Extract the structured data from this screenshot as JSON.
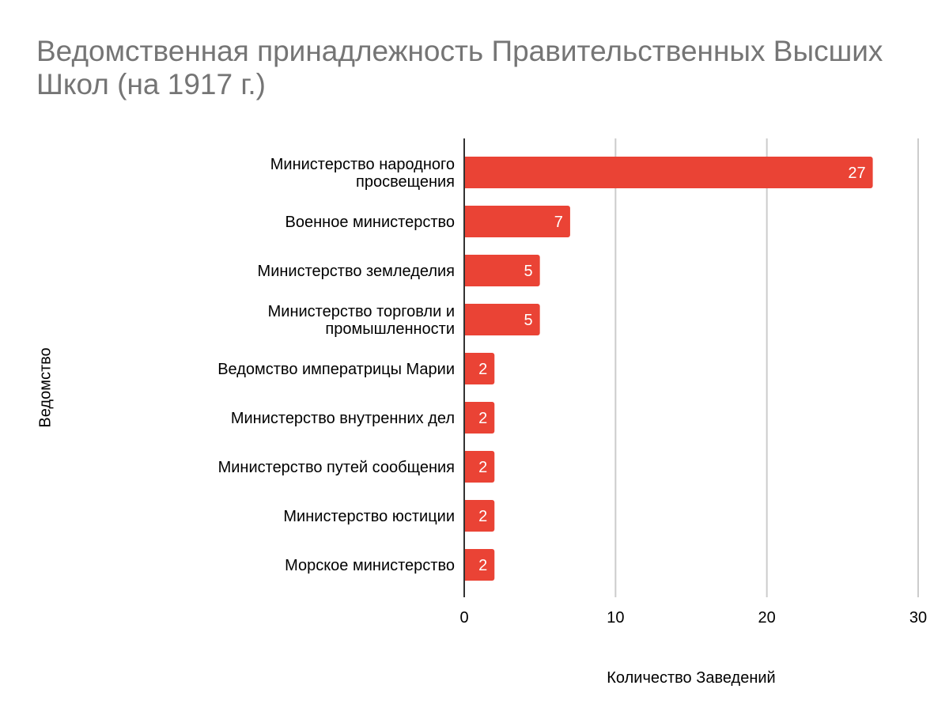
{
  "chart_data": {
    "type": "bar",
    "orientation": "horizontal",
    "title": "Ведомственная принадлежность Правительственных Высших Школ (на 1917 г.)",
    "xlabel": "Количество Заведений",
    "ylabel": "Ведомство",
    "categories": [
      "Министерство народного просвещения",
      "Военное министерство",
      "Министерство земледелия",
      "Министерство торговли и промышленности",
      "Ведомство императрицы Марии",
      "Министерство внутренних дел",
      "Министерство путей сообщения",
      "Министерство юстиции",
      "Морское министерство"
    ],
    "category_lines": [
      [
        "Министерство народного",
        "просвещения"
      ],
      [
        "Военное министерство"
      ],
      [
        "Министерство земледелия"
      ],
      [
        "Министерство торговли и",
        "промышленности"
      ],
      [
        "Ведомство императрицы Марии"
      ],
      [
        "Министерство внутренних дел"
      ],
      [
        "Министерство путей сообщения"
      ],
      [
        "Министерство юстиции"
      ],
      [
        "Морское министерство"
      ]
    ],
    "values": [
      27,
      7,
      5,
      5,
      2,
      2,
      2,
      2,
      2
    ],
    "xlim": [
      0,
      30
    ],
    "xticks": [
      "0",
      "10",
      "20",
      "30"
    ],
    "grid": true,
    "data_labels": true,
    "bar_color": "#ea4335",
    "title_color": "#757575"
  }
}
